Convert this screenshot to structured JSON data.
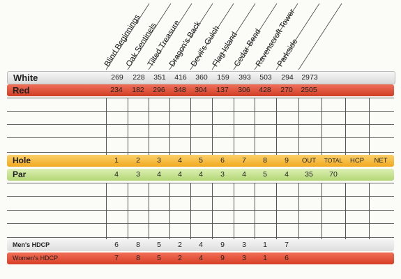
{
  "holes": [
    "Blind Beginnings",
    "Oak Sentinels",
    "Tilted Treasure",
    "Dragon's Back",
    "Devil's Gulch",
    "Flag Island",
    "Cedar Bend",
    "Ravenscroft Tower",
    "Parkside"
  ],
  "white": {
    "label": "White",
    "values": [
      "269",
      "228",
      "351",
      "416",
      "360",
      "159",
      "393",
      "503",
      "294",
      "2973"
    ]
  },
  "red": {
    "label": "Red",
    "values": [
      "234",
      "182",
      "296",
      "348",
      "304",
      "137",
      "306",
      "428",
      "270",
      "2505"
    ]
  },
  "hole": {
    "label": "Hole",
    "values": [
      "1",
      "2",
      "3",
      "4",
      "5",
      "6",
      "7",
      "8",
      "9",
      "OUT",
      "TOTAL",
      "HCP",
      "NET"
    ]
  },
  "par": {
    "label": "Par",
    "values": [
      "4",
      "3",
      "4",
      "4",
      "4",
      "3",
      "4",
      "5",
      "4",
      "35",
      "70"
    ]
  },
  "mens_hdcp": {
    "label": "Men's HDCP",
    "values": [
      "6",
      "8",
      "5",
      "2",
      "4",
      "9",
      "3",
      "1",
      "7"
    ]
  },
  "womens_hdcp": {
    "label": "Women's HDCP",
    "values": [
      "7",
      "8",
      "5",
      "2",
      "4",
      "9",
      "3",
      "1",
      "6"
    ]
  },
  "colors": {
    "white_band": "#e9e9ea",
    "red_band": "#e04a30",
    "hole_band": "#f6b733",
    "par_band": "#c2df8e",
    "womens_band": "#e5543a",
    "mens_band": "#ececec"
  }
}
